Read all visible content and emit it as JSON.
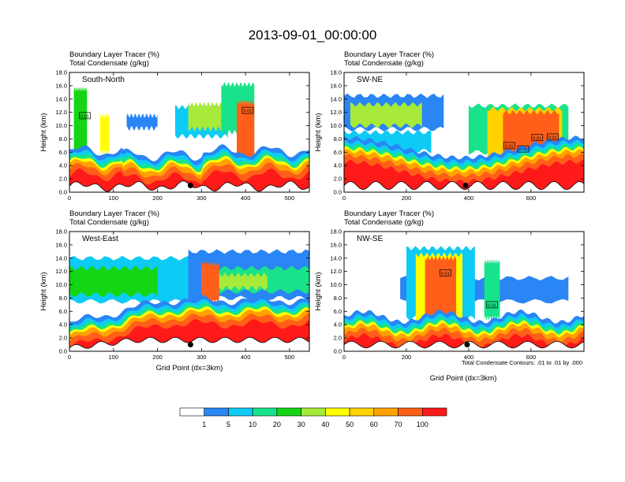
{
  "title": "2013-09-01_00:00:00",
  "colorbar": {
    "colors": [
      "#ffffff",
      "#2a85f5",
      "#0ecbf5",
      "#18e38a",
      "#14d614",
      "#a8ea3a",
      "#ffff00",
      "#ffd200",
      "#ffa200",
      "#ff5f18",
      "#ff1a1a"
    ],
    "labels": [
      "1",
      "5",
      "10",
      "20",
      "30",
      "40",
      "50",
      "60",
      "70",
      "100"
    ]
  },
  "contour_note": "Total Condensate Contours: .01 to .01 by .000",
  "chart_data": [
    {
      "type": "heatmap",
      "panel_label": "South-North",
      "subtitle_line1": "Boundary Layer Tracer   (%)",
      "subtitle_line2": "Total Condensate   (g/kg)",
      "ylabel": "Height (km)",
      "xlabel": "",
      "xlim": [
        0,
        545
      ],
      "ylim": [
        0,
        18
      ],
      "xticks": [
        "0",
        "100",
        "200",
        "300",
        "400",
        "500"
      ],
      "yticks": [
        "0.0",
        "2.0",
        "4.0",
        "6.0",
        "8.0",
        "10.0",
        "12.0",
        "14.0",
        "16.0",
        "18.0"
      ],
      "contour_labels": [
        {
          "text": "0.01",
          "x": 35,
          "y": 11.5
        },
        {
          "text": "0.01",
          "x": 405,
          "y": 12.3
        }
      ],
      "marker": {
        "x": 275,
        "y": 1.0
      }
    },
    {
      "type": "heatmap",
      "panel_label": "SW-NE",
      "subtitle_line1": "Boundary Layer Tracer   (%)",
      "subtitle_line2": "Total Condensate   (g/kg)",
      "ylabel": "Height (km)",
      "xlabel": "",
      "xlim": [
        0,
        770
      ],
      "ylim": [
        0,
        18
      ],
      "xticks": [
        "0",
        "200",
        "400",
        "600"
      ],
      "yticks": [
        "0.0",
        "2.0",
        "4.0",
        "6.0",
        "8.0",
        "10.0",
        "12.0",
        "14.0",
        "16.0",
        "18.0"
      ],
      "contour_labels": [
        {
          "text": "0.01",
          "x": 530,
          "y": 7.0
        },
        {
          "text": "0.01",
          "x": 575,
          "y": 6.5
        },
        {
          "text": "0.01",
          "x": 620,
          "y": 8.2
        },
        {
          "text": "0.01",
          "x": 670,
          "y": 8.3
        }
      ],
      "marker": {
        "x": 390,
        "y": 1.0
      }
    },
    {
      "type": "heatmap",
      "panel_label": "West-East",
      "subtitle_line1": "Boundary Layer Tracer   (%)",
      "subtitle_line2": "Total Condensate   (g/kg)",
      "ylabel": "Height (km)",
      "xlabel": "Grid Point (dx=3km)",
      "xlim": [
        0,
        545
      ],
      "ylim": [
        0,
        18
      ],
      "xticks": [
        "0",
        "100",
        "200",
        "300",
        "400",
        "500"
      ],
      "yticks": [
        "0.0",
        "2.0",
        "4.0",
        "6.0",
        "8.0",
        "10.0",
        "12.0",
        "14.0",
        "16.0",
        "18.0"
      ],
      "contour_labels": [],
      "marker": {
        "x": 275,
        "y": 1.0
      }
    },
    {
      "type": "heatmap",
      "panel_label": "NW-SE",
      "subtitle_line1": "Boundary Layer Tracer   (%)",
      "subtitle_line2": "Total Condensate   (g/kg)",
      "ylabel": "Height (km)",
      "xlabel": "Grid Point (dx=3km)",
      "xlim": [
        0,
        770
      ],
      "ylim": [
        0,
        18
      ],
      "xticks": [
        "0",
        "200",
        "400",
        "600"
      ],
      "yticks": [
        "0.0",
        "2.0",
        "4.0",
        "6.0",
        "8.0",
        "10.0",
        "12.0",
        "14.0",
        "16.0",
        "18.0"
      ],
      "contour_labels": [
        {
          "text": "0.01",
          "x": 325,
          "y": 11.8
        },
        {
          "text": "0.01",
          "x": 475,
          "y": 7.0
        }
      ],
      "marker": {
        "x": 395,
        "y": 1.0
      }
    }
  ]
}
